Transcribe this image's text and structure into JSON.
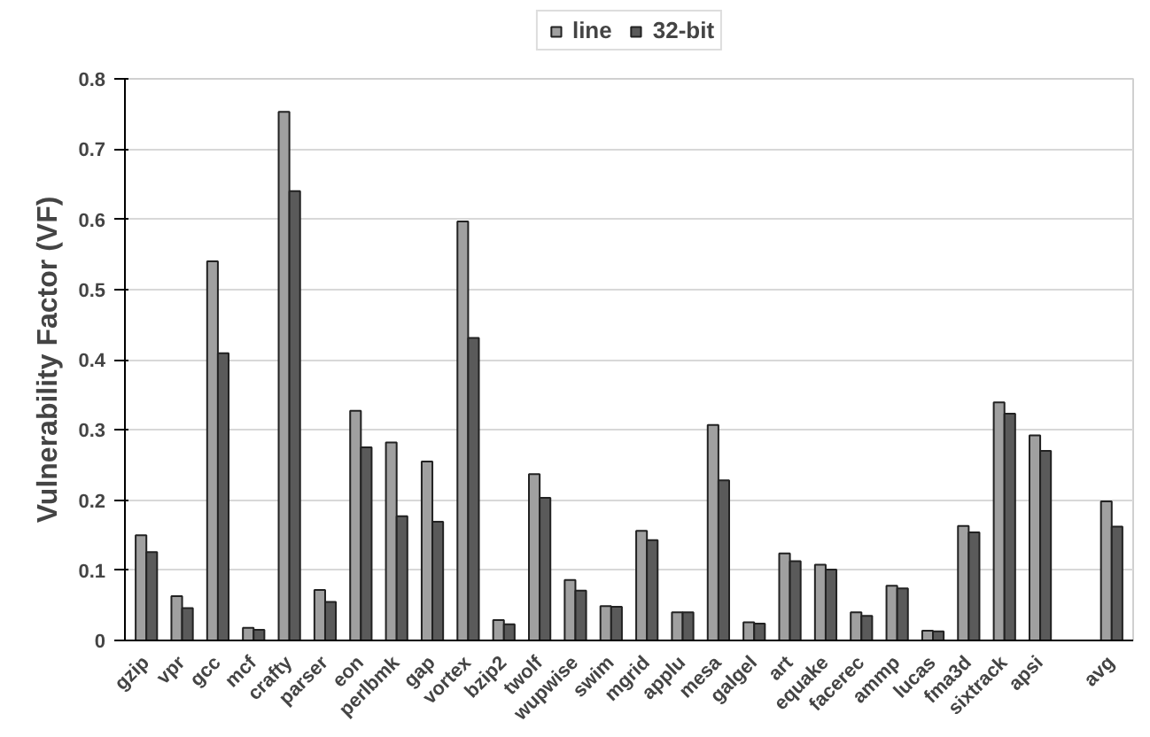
{
  "chart_data": {
    "type": "bar",
    "ylabel": "Vulnerability Factor (VF)",
    "categories": [
      "gzip",
      "vpr",
      "gcc",
      "mcf",
      "crafty",
      "parser",
      "eon",
      "perlbmk",
      "gap",
      "vortex",
      "bzip2",
      "twolf",
      "wupwise",
      "swim",
      "mgrid",
      "applu",
      "mesa",
      "galgel",
      "art",
      "equake",
      "facerec",
      "ammp",
      "lucas",
      "fma3d",
      "sixtrack",
      "apsi",
      null,
      "avg"
    ],
    "series": [
      {
        "name": "line",
        "color": "#a0a0a0",
        "values": [
          0.15,
          0.063,
          0.54,
          0.018,
          0.753,
          0.072,
          0.327,
          0.282,
          0.255,
          0.597,
          0.029,
          0.237,
          0.086,
          0.049,
          0.156,
          0.04,
          0.307,
          0.026,
          0.124,
          0.108,
          0.04,
          0.078,
          0.014,
          0.163,
          0.339,
          0.292,
          null,
          0.198
        ]
      },
      {
        "name": "32-bit",
        "color": "#5a5a5a",
        "values": [
          0.126,
          0.046,
          0.409,
          0.015,
          0.64,
          0.055,
          0.275,
          0.177,
          0.169,
          0.431,
          0.023,
          0.203,
          0.071,
          0.048,
          0.143,
          0.04,
          0.228,
          0.024,
          0.113,
          0.101,
          0.035,
          0.074,
          0.013,
          0.154,
          0.323,
          0.27,
          null,
          0.162
        ]
      }
    ],
    "ylim": [
      0,
      0.8
    ],
    "yticks": [
      {
        "value": 0,
        "label": "0"
      },
      0.1,
      0.2,
      0.3,
      0.4,
      0.5,
      0.6,
      0.7,
      0.8
    ],
    "grid": "y",
    "legend": "top"
  }
}
